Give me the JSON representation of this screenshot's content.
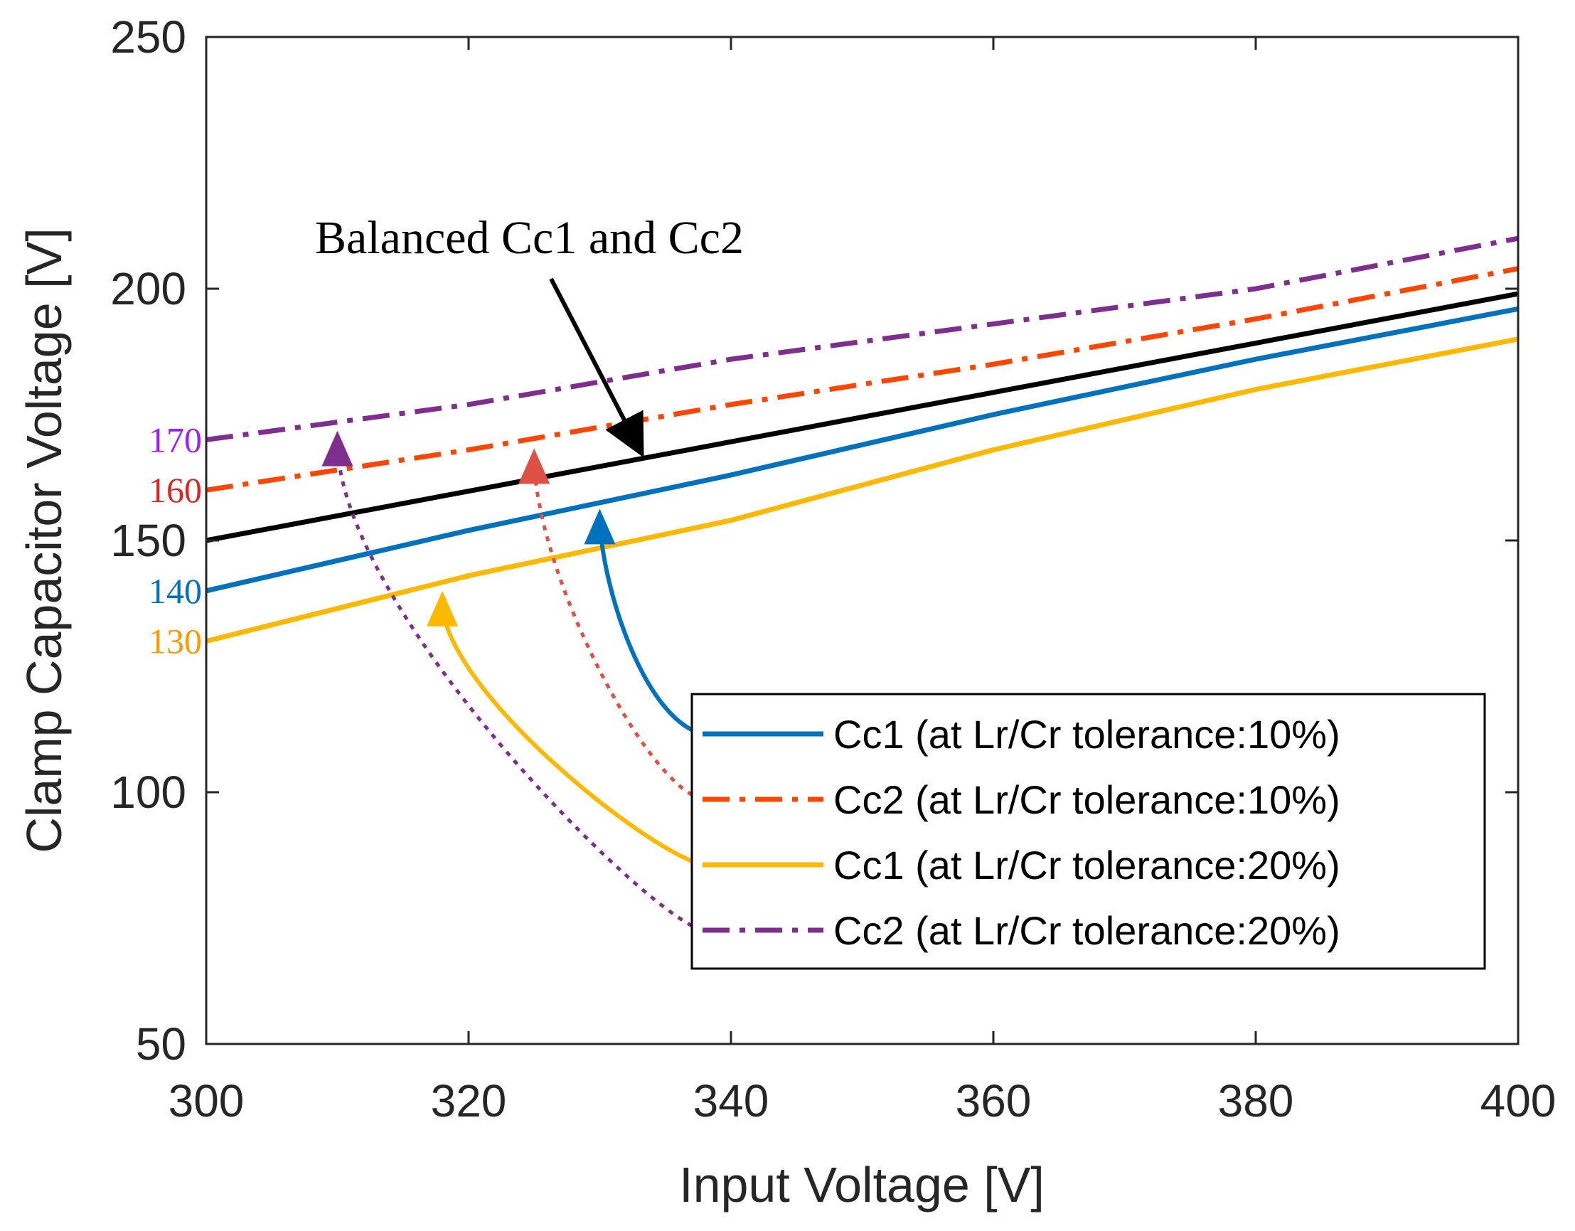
{
  "chart_data": {
    "type": "line",
    "xlabel": "Input Voltage [V]",
    "ylabel": "Clamp Capacitor Voltage [V]",
    "xlim": [
      300,
      400
    ],
    "ylim": [
      50,
      250
    ],
    "xticks": [
      300,
      320,
      340,
      360,
      380,
      400
    ],
    "yticks": [
      50,
      100,
      150,
      200,
      250
    ],
    "grid": false,
    "legend_position": "bottom-right",
    "series": [
      {
        "name": "Cc1 (at Lr/Cr tolerance:10%)",
        "color": "#0072BD",
        "style": "solid",
        "x": [
          300,
          320,
          340,
          360,
          380,
          400
        ],
        "y": [
          140,
          152,
          163,
          175,
          186,
          196
        ]
      },
      {
        "name": "Cc2 (at Lr/Cr tolerance:10%)",
        "color": "#FF4500",
        "style": "dashdot",
        "x": [
          300,
          320,
          340,
          360,
          380,
          400
        ],
        "y": [
          160,
          168,
          177,
          185,
          194,
          204
        ]
      },
      {
        "name": "Cc1 (at Lr/Cr tolerance:20%)",
        "color": "#FFB800",
        "style": "solid",
        "x": [
          300,
          320,
          340,
          360,
          380,
          400
        ],
        "y": [
          130,
          143,
          154,
          168,
          180,
          190
        ]
      },
      {
        "name": "Cc2 (at Lr/Cr tolerance:20%)",
        "color": "#7E2F8E",
        "style": "dashdot",
        "x": [
          300,
          320,
          340,
          360,
          380,
          400
        ],
        "y": [
          170,
          177,
          186,
          193,
          200,
          210
        ]
      },
      {
        "name": "Balanced Cc1 and Cc2",
        "color": "#000000",
        "style": "solid",
        "in_legend": false,
        "x": [
          300,
          400
        ],
        "y": [
          150,
          199
        ]
      }
    ],
    "annotations": {
      "balanced_label": "Balanced Cc1 and Cc2",
      "side_labels": [
        {
          "text": "170",
          "value": 170,
          "color": "#A020F0"
        },
        {
          "text": "160",
          "value": 160,
          "color": "#D62728"
        },
        {
          "text": "140",
          "value": 140,
          "color": "#0072BD"
        },
        {
          "text": "130",
          "value": 130,
          "color": "#FF9900"
        }
      ]
    }
  }
}
